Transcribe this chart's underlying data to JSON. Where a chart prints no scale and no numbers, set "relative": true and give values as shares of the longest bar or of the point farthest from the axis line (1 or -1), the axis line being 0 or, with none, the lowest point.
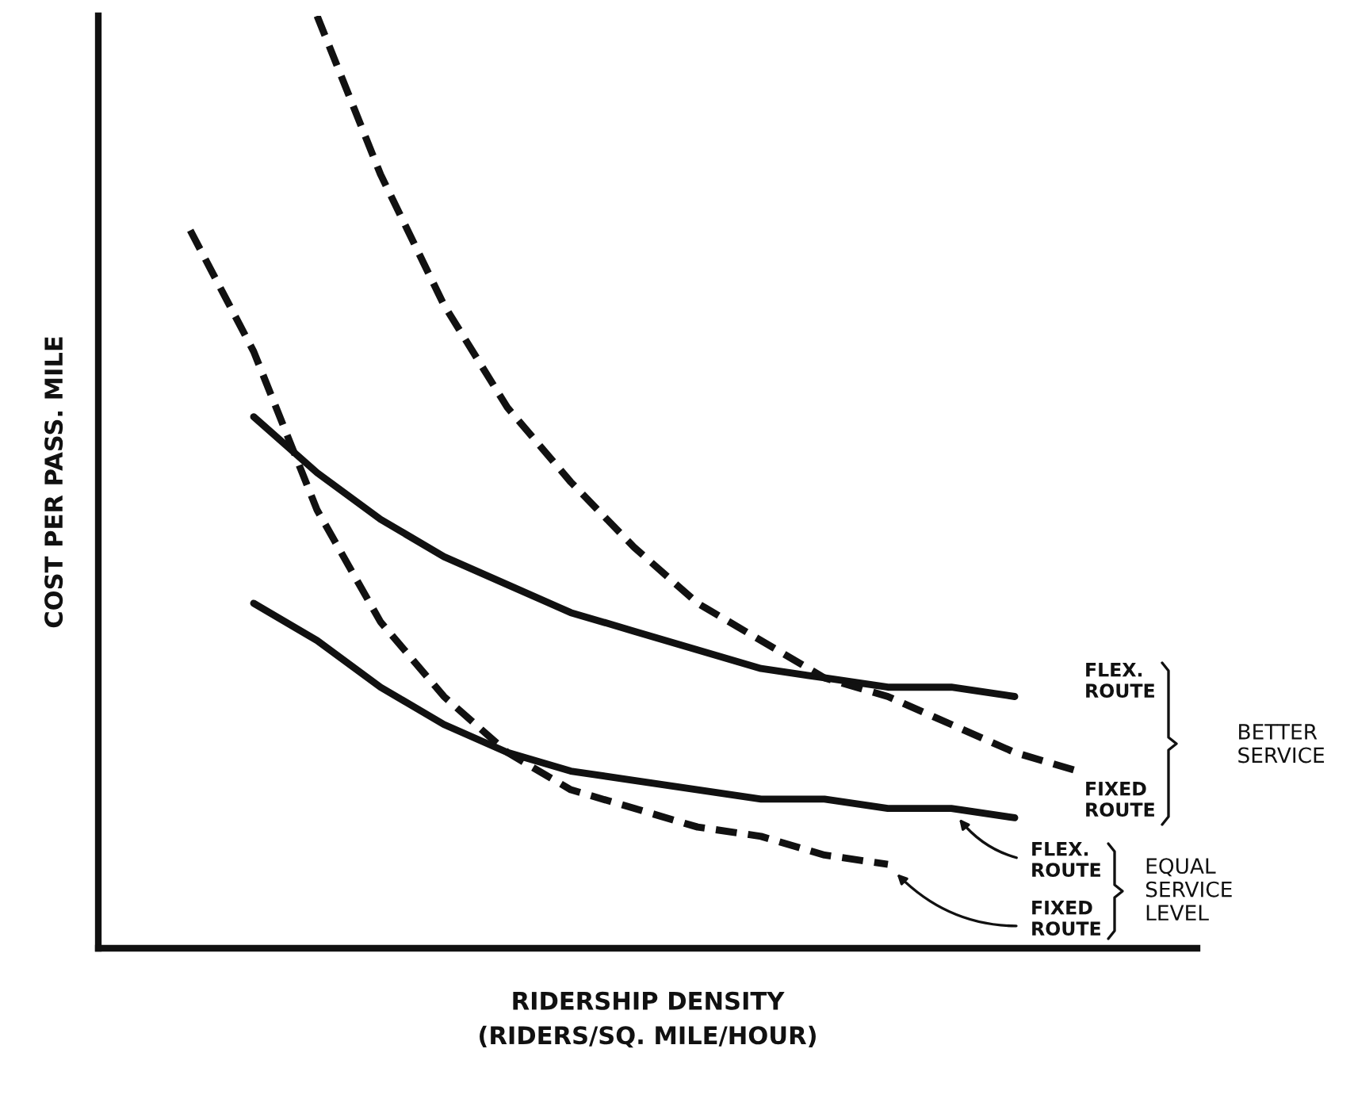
{
  "chart_data": {
    "type": "line",
    "relative": true,
    "xlabel": "RIDERSHIP DENSITY (RIDERS/SQ. MILE/HOUR)",
    "ylabel": "COST PER PASS. MILE",
    "categories": [
      null,
      null,
      null,
      null,
      null,
      null,
      null,
      null,
      null,
      null,
      null,
      null,
      null,
      null,
      null,
      null
    ],
    "series": [
      {
        "name": "FLEX. ROUTE",
        "color": "#111111",
        "line_style": "solid",
        "values": [
          null,
          0.57,
          0.51,
          0.46,
          0.42,
          0.39,
          0.36,
          0.34,
          0.32,
          0.3,
          0.29,
          0.28,
          0.28,
          0.27,
          null,
          null
        ]
      },
      {
        "name": "FIXED ROUTE",
        "color": "#111111",
        "line_style": "dashed",
        "values": [
          null,
          null,
          1.0,
          0.83,
          0.69,
          0.58,
          0.5,
          0.43,
          0.37,
          0.33,
          0.29,
          0.27,
          0.24,
          0.21,
          0.19,
          null
        ]
      },
      {
        "name": "FLEX. ROUTE",
        "color": "#111111",
        "line_style": "solid",
        "values": [
          null,
          0.37,
          0.33,
          0.28,
          0.24,
          0.21,
          0.19,
          0.18,
          0.17,
          0.16,
          0.16,
          0.15,
          0.15,
          0.14,
          null,
          null
        ]
      },
      {
        "name": "FIXED ROUTE",
        "color": "#111111",
        "line_style": "dashed",
        "values": [
          0.77,
          0.64,
          0.47,
          0.35,
          0.27,
          0.21,
          0.17,
          0.15,
          0.13,
          0.12,
          0.1,
          0.09,
          null,
          null,
          null,
          null
        ]
      }
    ],
    "annotations": [
      "BETTER SERVICE",
      "EQUAL SERVICE LEVEL"
    ]
  }
}
